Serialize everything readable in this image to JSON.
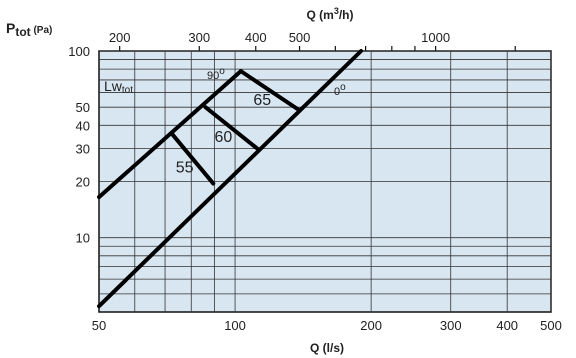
{
  "chart_data": {
    "type": "line",
    "x_axis": {
      "label": "Q (l/s)",
      "scale": "log",
      "range": [
        50,
        500
      ],
      "ticks": [
        {
          "value": 50,
          "label": "50"
        },
        {
          "value": 100,
          "label": "100"
        },
        {
          "value": 200,
          "label": "200"
        },
        {
          "value": 300,
          "label": "300"
        },
        {
          "value": 400,
          "label": "400"
        },
        {
          "value": 500,
          "label": "500"
        }
      ]
    },
    "x2_axis": {
      "label_prefix": "Q (m",
      "label_sup": "3",
      "label_suffix": "/h)",
      "scale": "log",
      "position": "top",
      "ticks": [
        {
          "value": 200,
          "label": "200"
        },
        {
          "value": 300,
          "label": "300"
        },
        {
          "value": 400,
          "label": "400"
        },
        {
          "value": 500,
          "label": "500"
        },
        {
          "value": 1000,
          "label": "1000"
        }
      ]
    },
    "y_axis": {
      "label_main": "P",
      "label_sub": "tot",
      "label_unit": " (Pa)",
      "scale": "log",
      "range": [
        4,
        100
      ],
      "ticks": [
        {
          "value": 10,
          "label": "10"
        },
        {
          "value": 20,
          "label": "20"
        },
        {
          "value": 30,
          "label": "30"
        },
        {
          "value": 40,
          "label": "40"
        },
        {
          "value": 50,
          "label": "50"
        },
        {
          "value": 100,
          "label": "100"
        }
      ]
    },
    "grid": true,
    "background_color": "#d8e6f2",
    "series": [
      {
        "name": "90°",
        "label_main": "90",
        "points": [
          [
            50,
            16.5
          ],
          [
            103,
            78
          ]
        ]
      },
      {
        "name": "0°",
        "label_main": "0",
        "points": [
          [
            50,
            4.3
          ],
          [
            190,
            100
          ]
        ]
      }
    ],
    "iso_lines": [
      {
        "label": "55",
        "points": [
          [
            72.5,
            36
          ],
          [
            89.5,
            19.5
          ]
        ]
      },
      {
        "label": "60",
        "points": [
          [
            86,
            50
          ],
          [
            112,
            30
          ]
        ]
      },
      {
        "label": "65",
        "points": [
          [
            103,
            78
          ],
          [
            139,
            48
          ]
        ]
      }
    ],
    "lw_label_main": "Lw",
    "lw_label_sub": "tot",
    "degree_symbol": "o"
  }
}
